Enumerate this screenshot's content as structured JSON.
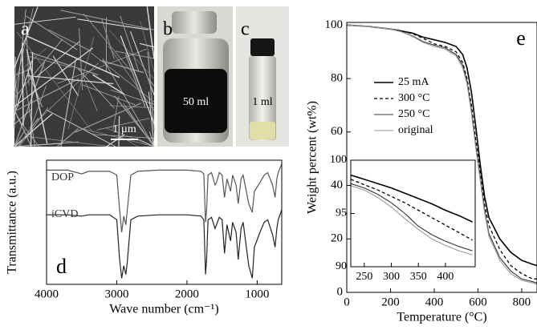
{
  "photos": [
    {
      "label": "a",
      "text": "1 µm"
    },
    {
      "label": "b",
      "text": "50 ml"
    },
    {
      "label": "c",
      "text": "1 ml"
    }
  ],
  "chart_data": [
    {
      "type": "line",
      "label": "d",
      "xlabel": "Wave number (cm⁻¹)",
      "ylabel": "Transmittance (a.u.)",
      "annotations": [
        "DOP",
        "iCVD"
      ],
      "x": [
        4000,
        3700,
        3500,
        3400,
        3100,
        3000,
        2960,
        2930,
        2900,
        2870,
        2850,
        2800,
        2700,
        2400,
        2000,
        1800,
        1760,
        1735,
        1720,
        1700,
        1650,
        1600,
        1580,
        1540,
        1500,
        1465,
        1430,
        1380,
        1350,
        1300,
        1270,
        1230,
        1200,
        1120,
        1070,
        1040,
        960,
        900,
        850,
        780,
        745,
        720,
        700,
        650
      ],
      "series": [
        {
          "color": "#555555",
          "line_style": "solid",
          "values": [
            92,
            92,
            89,
            91,
            91,
            88,
            60,
            42,
            55,
            48,
            60,
            88,
            91,
            92,
            92,
            91,
            89,
            50,
            60,
            88,
            90,
            80,
            82,
            90,
            88,
            70,
            85,
            75,
            88,
            80,
            65,
            85,
            88,
            65,
            58,
            75,
            82,
            88,
            90,
            80,
            70,
            85,
            90,
            97
          ]
        },
        {
          "color": "#222222",
          "line_style": "solid",
          "values": [
            56,
            56,
            55,
            56,
            56,
            52,
            20,
            5,
            15,
            8,
            18,
            52,
            55,
            56,
            56,
            55,
            52,
            8,
            20,
            52,
            54,
            45,
            48,
            54,
            52,
            25,
            48,
            35,
            50,
            42,
            20,
            45,
            50,
            15,
            5,
            30,
            42,
            50,
            52,
            40,
            30,
            45,
            52,
            60
          ]
        }
      ],
      "xlim": [
        4000,
        650
      ],
      "xticks": [
        4000,
        3000,
        2000,
        1000
      ],
      "ylim": [
        0,
        100
      ]
    },
    {
      "type": "line",
      "label": "e",
      "xlabel": "Temperature (°C)",
      "ylabel": "Weight percent (wt%)",
      "x": [
        0,
        100,
        200,
        250,
        300,
        350,
        400,
        450,
        500,
        530,
        550,
        570,
        590,
        610,
        630,
        650,
        700,
        750,
        800,
        850,
        870
      ],
      "series": [
        {
          "name": "25 mA",
          "color": "#000000",
          "line_style": "solid",
          "values": [
            100,
            99.5,
            98.5,
            97.8,
            97,
            95.5,
            94.5,
            93.5,
            92,
            89,
            84,
            75,
            62,
            48,
            36,
            28,
            20,
            15,
            12,
            10.5,
            10
          ]
        },
        {
          "name": "300 °C",
          "color": "#000000",
          "line_style": "dashed",
          "values": [
            100,
            99.5,
            98.5,
            97.8,
            96.8,
            95,
            93,
            92,
            90,
            86,
            80,
            70,
            57,
            45,
            33,
            25,
            16,
            10,
            7,
            5,
            5
          ]
        },
        {
          "name": "250 °C",
          "color": "#333333",
          "line_style": "solid",
          "values": [
            100,
            99.5,
            98.5,
            97.5,
            96,
            93.8,
            92.5,
            91.5,
            89,
            85,
            79,
            68,
            55,
            43,
            31,
            22,
            13,
            8,
            5,
            4,
            3.5
          ]
        },
        {
          "name": "original",
          "color": "#999999",
          "line_style": "solid",
          "values": [
            100,
            99.5,
            98.5,
            97.5,
            95.8,
            93.5,
            92,
            91,
            88.5,
            84,
            78,
            67,
            54,
            42,
            30,
            21,
            12,
            7,
            4.5,
            3.5,
            3
          ]
        }
      ],
      "xlim": [
        0,
        870
      ],
      "xticks": [
        0,
        200,
        400,
        600,
        800
      ],
      "ylim": [
        0,
        101
      ],
      "yticks": [
        0,
        20,
        40,
        60,
        80,
        100
      ],
      "legend": "upper-left"
    },
    {
      "type": "line",
      "x": [
        225,
        250,
        275,
        300,
        325,
        350,
        375,
        400,
        425,
        450
      ],
      "series": [
        {
          "color": "#000000",
          "line_style": "solid",
          "values": [
            98.6,
            98.2,
            97.8,
            97.4,
            96.9,
            96.4,
            95.9,
            95.3,
            94.8,
            94.2
          ]
        },
        {
          "color": "#000000",
          "line_style": "dashed",
          "values": [
            98.2,
            97.7,
            97.2,
            96.6,
            96,
            95.3,
            94.6,
            93.9,
            93.2,
            92.5
          ]
        },
        {
          "color": "#333333",
          "line_style": "solid",
          "values": [
            97.8,
            97.4,
            96.8,
            96,
            95,
            93.8,
            93,
            92.4,
            91.9,
            91.5
          ]
        },
        {
          "color": "#999999",
          "line_style": "solid",
          "values": [
            97.6,
            97.2,
            96.5,
            95.6,
            94.5,
            93.5,
            92.6,
            92,
            91.5,
            91.1
          ]
        }
      ],
      "xlim": [
        225,
        455
      ],
      "xticks": [
        250,
        300,
        350,
        400
      ],
      "ylim": [
        90,
        100
      ],
      "yticks": [
        90,
        95,
        100
      ]
    }
  ]
}
